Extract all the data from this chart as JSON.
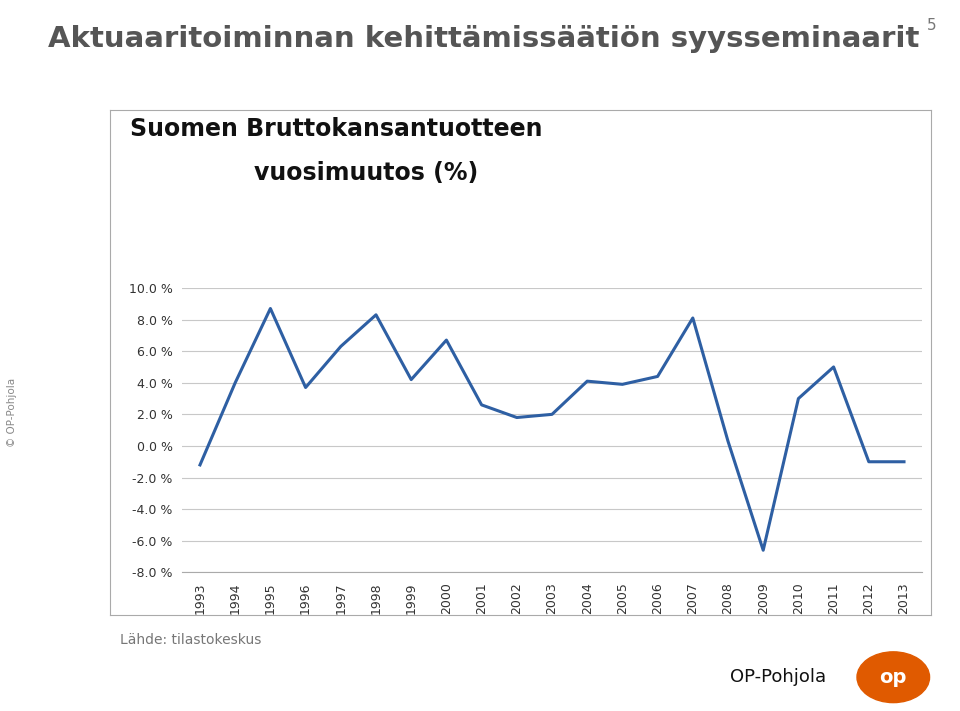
{
  "title_main": "Aktuaaritoiminnan kehittämissäätiön syysseminaarit",
  "chart_title_line1": "Suomen Bruttokansantuotteen",
  "chart_title_line2": "vuosimuutos (%)",
  "page_number": "5",
  "source_label": "Lähde: tilastokeskus",
  "years": [
    1993,
    1994,
    1995,
    1996,
    1997,
    1998,
    1999,
    2000,
    2001,
    2002,
    2003,
    2004,
    2005,
    2006,
    2007,
    2008,
    2009,
    2010,
    2011,
    2012,
    2013
  ],
  "values": [
    -1.2,
    4.0,
    8.7,
    3.7,
    6.3,
    8.3,
    4.2,
    6.7,
    2.6,
    1.8,
    2.0,
    4.1,
    3.9,
    4.4,
    8.1,
    0.3,
    -6.6,
    3.0,
    5.0,
    -1.0,
    -1.0
  ],
  "line_color": "#2E5FA3",
  "background_color": "#ffffff",
  "chart_box_color": "#ffffff",
  "grid_color": "#c8c8c8",
  "ylim": [
    -8.0,
    10.0
  ],
  "yticks": [
    -8.0,
    -6.0,
    -4.0,
    -2.0,
    0.0,
    2.0,
    4.0,
    6.0,
    8.0,
    10.0
  ],
  "footer_bg": "#b8b8b8",
  "line_width": 2.2,
  "op_pohjola_color": "#e05a00",
  "side_text": "© OP-Pohjola"
}
